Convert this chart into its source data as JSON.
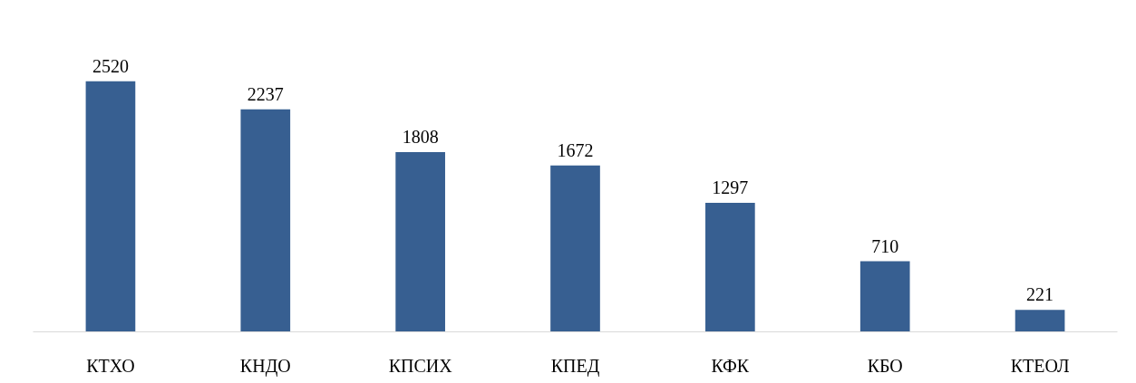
{
  "chart_data": {
    "type": "bar",
    "categories": [
      "КТХО",
      "КНДО",
      "КПСИХ",
      "КПЕД",
      "КФК",
      "КБО",
      "КТЕОЛ"
    ],
    "values": [
      2520,
      2237,
      1808,
      1672,
      1297,
      710,
      221
    ],
    "color": "#375f91",
    "data_labels": true,
    "grid": false
  }
}
